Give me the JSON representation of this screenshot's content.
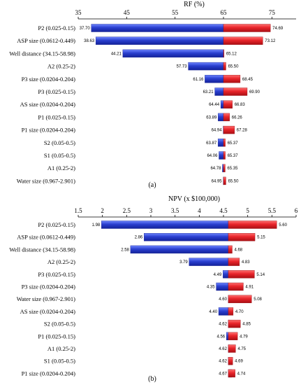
{
  "chart_data": [
    {
      "type": "bar",
      "subtype": "tornado",
      "panel_label": "(a)",
      "xlabel": "RF (%)",
      "xlim": [
        35,
        80
      ],
      "xticks": [
        35,
        45,
        55,
        65,
        75
      ],
      "base": 65,
      "grid": false,
      "axis_position": "top",
      "colors": {
        "low": "#2a3fcf",
        "high": "#e8242a"
      },
      "categories": [
        "P2 (0.025-0.15)",
        "ASP size (0.0612-0.449)",
        "Well distance (34.15-58.98)",
        "A2 (0.25-2)",
        "P3 size (0.0204-0.204)",
        "P3 (0.025-0.15)",
        "AS size (0.0204-0.204)",
        "P1 (0.025-0.15)",
        "P1 size (0.0204-0.204)",
        "S2 (0.05-0.5)",
        "S1 (0.05-0.5)",
        "A1 (0.25-2)",
        "Water size (0.967-2.901)"
      ],
      "low_values": [
        37.7,
        38.63,
        44.21,
        57.73,
        61.16,
        63.21,
        64.44,
        63.89,
        64.94,
        63.87,
        64.06,
        64.78,
        64.95
      ],
      "high_values": [
        74.69,
        73.12,
        65.12,
        65.5,
        68.45,
        69.9,
        66.83,
        66.26,
        67.28,
        65.37,
        65.37,
        65.35,
        65.5
      ],
      "low_labels": [
        "37.70",
        "38.63",
        "44.21",
        "57.73",
        "61.16",
        "63.21",
        "64.44",
        "63.89",
        "64.94",
        "63.87",
        "64.06",
        "64.78",
        "64.95"
      ],
      "high_labels": [
        "74.69",
        "73.12",
        "65.12",
        "65.50",
        "68.45",
        "69.90",
        "66.83",
        "66.26",
        "67.28",
        "65.37",
        "65.37",
        "65.35",
        "65.50"
      ]
    },
    {
      "type": "bar",
      "subtype": "tornado",
      "panel_label": "(b)",
      "xlabel": "NPV (x $100,000)",
      "xlim": [
        1.5,
        6
      ],
      "xticks": [
        1.5,
        2,
        2.5,
        3,
        3.5,
        4,
        4.5,
        5,
        5.5,
        6
      ],
      "base": 4.6,
      "grid": false,
      "axis_position": "top",
      "colors": {
        "low": "#2a3fcf",
        "high": "#e8242a"
      },
      "categories": [
        "P2 (0.025-0.15)",
        "ASP size (0.0612-0.449)",
        "Well distance (34.15-58.98)",
        "A2 (0.25-2)",
        "P3 (0.025-0.15)",
        "P3 size (0.0204-0.204)",
        "Water size (0.967-2.901)",
        "AS size (0.0204-0.204)",
        "S2 (0.05-0.5)",
        "P1 (0.025-0.15)",
        "A1 (0.25-2)",
        "S1 (0.05-0.5)",
        "P1 size (0.0204-0.204)"
      ],
      "low_values": [
        1.98,
        2.86,
        2.58,
        3.79,
        4.49,
        4.35,
        4.6,
        4.4,
        4.62,
        4.56,
        4.62,
        4.62,
        4.67
      ],
      "high_values": [
        5.6,
        5.15,
        4.68,
        4.83,
        5.14,
        4.91,
        5.08,
        4.7,
        4.85,
        4.79,
        4.75,
        4.69,
        4.74
      ],
      "low_labels": [
        "1.98",
        "2.86",
        "2.58",
        "3.79",
        "4.49",
        "4.35",
        "4.60",
        "4.40",
        "4.62",
        "4.56",
        "4.62",
        "4.62",
        "4.67"
      ],
      "high_labels": [
        "5.60",
        "5.15",
        "4.68",
        "4.83",
        "5.14",
        "4.91",
        "5.08",
        "4.70",
        "4.85",
        "4.79",
        "4.75",
        "4.69",
        "4.74"
      ]
    }
  ]
}
